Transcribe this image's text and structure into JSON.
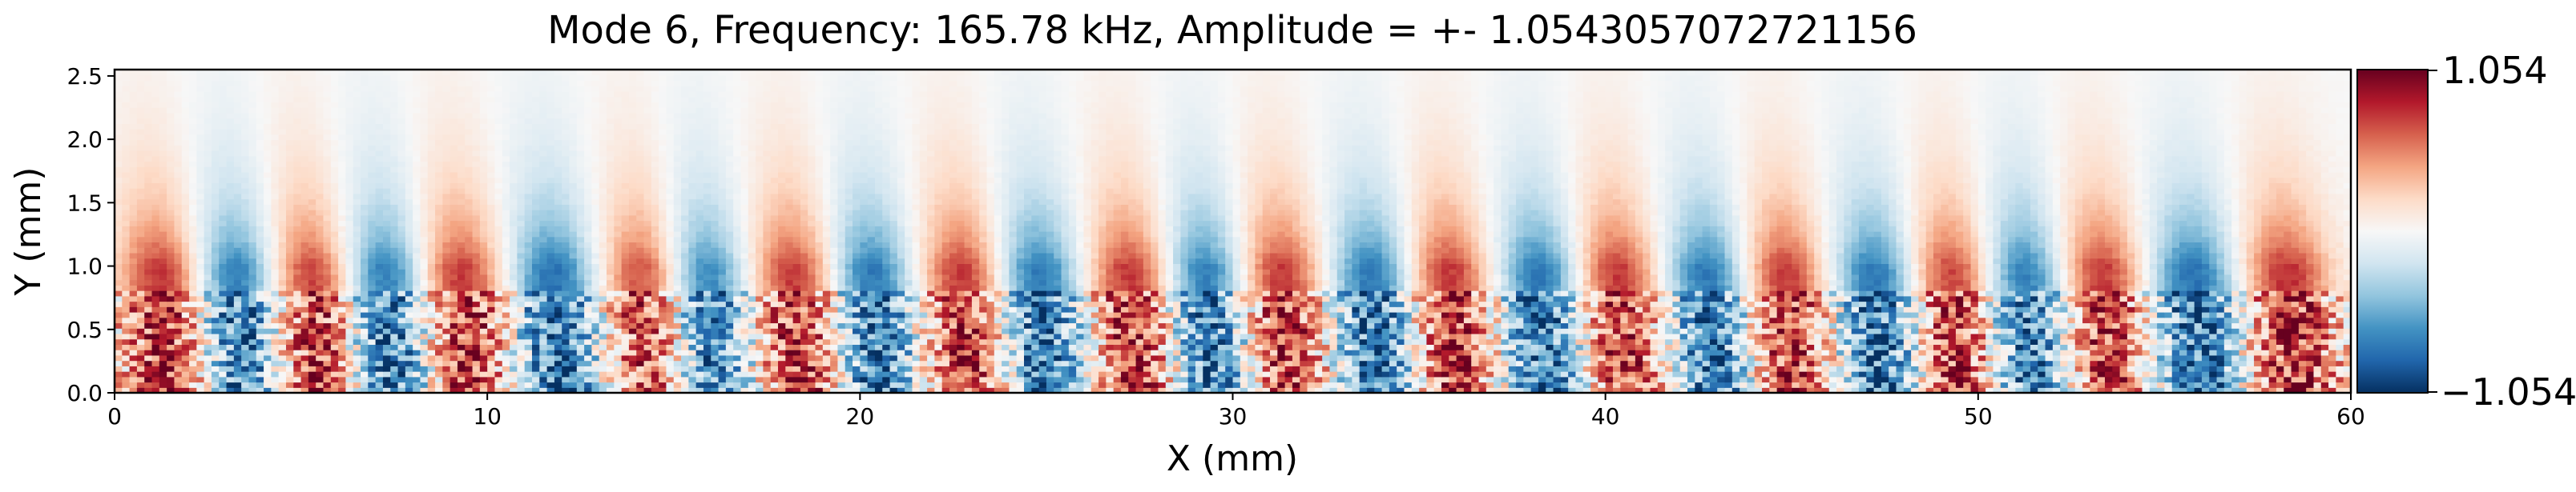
{
  "chart_data": {
    "type": "heatmap",
    "title": "Mode 6, Frequency: 165.78 kHz, Amplitude = +- 1.0543057072721156",
    "xlabel": "X (mm)",
    "ylabel": "Y (mm)",
    "xlim": [
      0,
      60
    ],
    "ylim": [
      0,
      2.55
    ],
    "xticks": [
      "0",
      "10",
      "20",
      "30",
      "40",
      "50",
      "60"
    ],
    "xtick_values": [
      0,
      10,
      20,
      30,
      40,
      50,
      60
    ],
    "yticks": [
      "0.0",
      "0.5",
      "1.0",
      "1.5",
      "2.0",
      "2.5"
    ],
    "ytick_values": [
      0,
      0.5,
      1.0,
      1.5,
      2.0,
      2.5
    ],
    "colormap": "RdBu_r",
    "colorbar": {
      "max_label": "1.054",
      "min_label": "−1.054",
      "vmin": -1.0543057072721156,
      "vmax": 1.0543057072721156
    },
    "grid": false,
    "approx_wave_crest_x_mm": [
      1.5,
      5.5,
      9.5,
      14.5,
      18.5,
      23,
      27.5,
      31.5,
      36,
      40.5,
      45,
      49.5,
      53.5,
      58.5
    ],
    "approx_wave_trough_x_mm": [
      3.5,
      7.5,
      12,
      16,
      20.5,
      25,
      29.5,
      34,
      38.5,
      43,
      47.5,
      51.5,
      56
    ]
  },
  "colors": {
    "deep_red": "#67001f",
    "white": "#f7f7f7",
    "deep_blue": "#053061"
  }
}
